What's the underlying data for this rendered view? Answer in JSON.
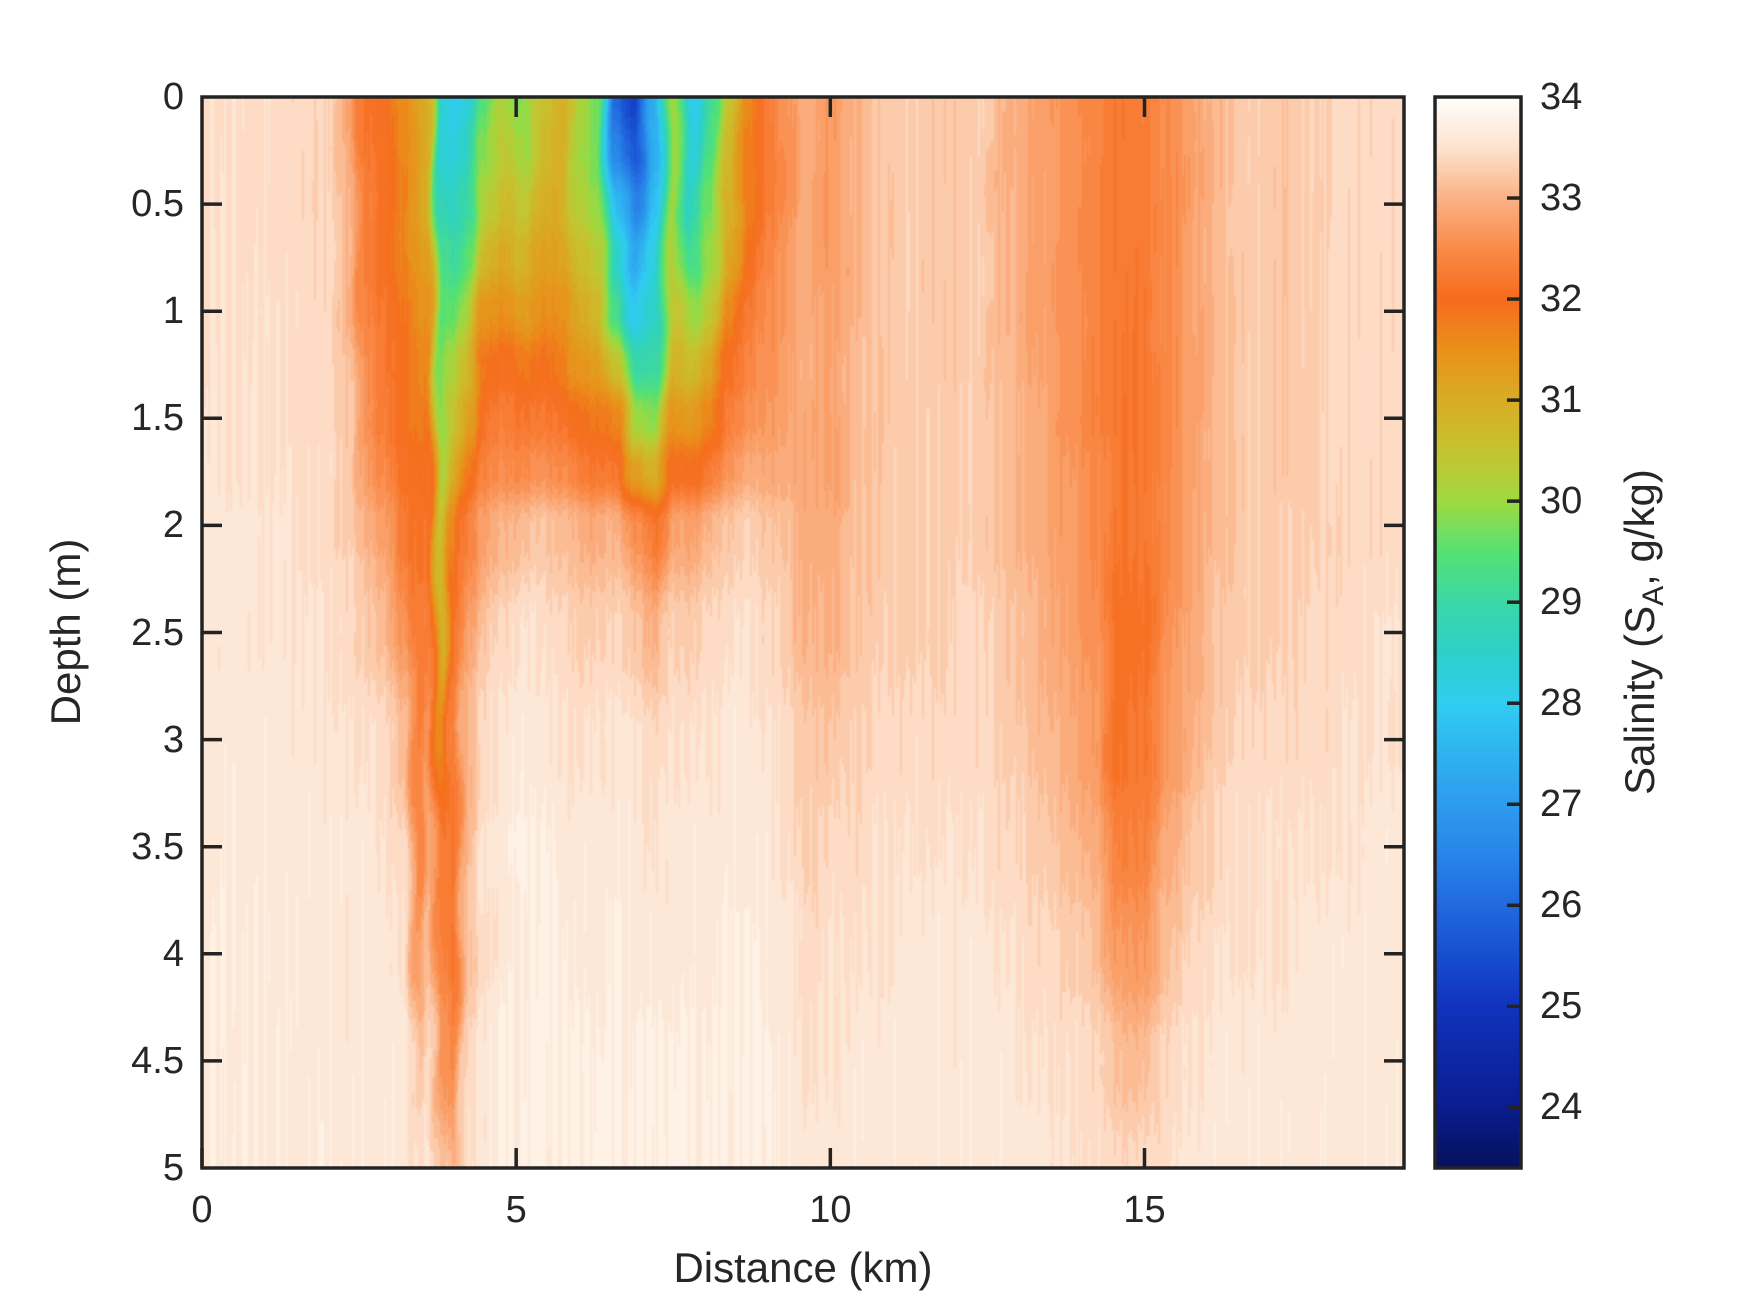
{
  "background": "#FFFFFF",
  "axes_color": "#232323",
  "text_color": "#262626",
  "chart_data": {
    "type": "heatmap",
    "title": "",
    "xlabel": "Distance (km)",
    "ylabel": "Depth (m)",
    "xlim": [
      0,
      19.13
    ],
    "ylim": [
      0,
      5
    ],
    "grid": false,
    "x_axis": {
      "ticks": [
        0,
        5,
        10,
        15
      ],
      "labels": [
        "0",
        "5",
        "10",
        "15"
      ]
    },
    "y_axis": {
      "ticks": [
        0,
        0.5,
        1,
        1.5,
        2,
        2.5,
        3,
        3.5,
        4,
        4.5,
        5
      ],
      "labels": [
        "0",
        "0.5",
        "1",
        "1.5",
        "2",
        "2.5",
        "3",
        "3.5",
        "4",
        "4.5",
        "5"
      ]
    },
    "colorbar": {
      "label_pre": "Salinity (S",
      "label_sub": "A",
      "label_post": ", g/kg)",
      "vmin": 23.4,
      "vmax": 34,
      "ticks": [
        34,
        33,
        32,
        31,
        30,
        29,
        28,
        27,
        26,
        25,
        24
      ],
      "tick_labels": [
        "34",
        "33",
        "32",
        "31",
        "30",
        "29",
        "28",
        "27",
        "26",
        "25",
        "24"
      ],
      "colormap": [
        [
          23.5,
          "#071262"
        ],
        [
          24.0,
          "#0A1D90"
        ],
        [
          24.5,
          "#0D27A5"
        ],
        [
          25.0,
          "#1133BD"
        ],
        [
          25.5,
          "#174ED0"
        ],
        [
          26.0,
          "#2169DF"
        ],
        [
          26.5,
          "#2984E9"
        ],
        [
          27.0,
          "#2D9CEE"
        ],
        [
          27.5,
          "#2FB3F0"
        ],
        [
          28.0,
          "#30CDF0"
        ],
        [
          28.5,
          "#2DD0C9"
        ],
        [
          29.0,
          "#3BD7A5"
        ],
        [
          29.5,
          "#55E273"
        ],
        [
          30.0,
          "#9FD93F"
        ],
        [
          30.5,
          "#C6C330"
        ],
        [
          31.0,
          "#D8AC24"
        ],
        [
          31.5,
          "#E9901B"
        ],
        [
          32.0,
          "#F76B1D"
        ],
        [
          32.5,
          "#F98B49"
        ],
        [
          33.0,
          "#FBB286"
        ],
        [
          33.5,
          "#FDE3D0"
        ],
        [
          34.0,
          "#FFFEFC"
        ]
      ]
    },
    "x_km": [
      0.0,
      1.0,
      2.0,
      2.3,
      2.6,
      2.9,
      3.2,
      3.45,
      3.6,
      3.8,
      4.0,
      4.2,
      4.5,
      4.8,
      5.1,
      5.4,
      5.7,
      6.0,
      6.3,
      6.6,
      6.9,
      7.2,
      7.5,
      7.8,
      8.1,
      8.4,
      8.7,
      9.0,
      9.3,
      9.6,
      10.0,
      10.4,
      10.8,
      11.3,
      11.8,
      12.3,
      12.8,
      13.3,
      13.8,
      14.2,
      14.6,
      15.0,
      15.4,
      15.8,
      16.2,
      16.7,
      17.2,
      17.7,
      18.2,
      18.7,
      19.1
    ],
    "depth_m": [
      0.0,
      0.25,
      0.5,
      0.75,
      1.0,
      1.25,
      1.5,
      1.75,
      2.0,
      2.5,
      3.0,
      3.5,
      4.0,
      4.5,
      5.0
    ],
    "salinity_g_kg": [
      [
        33.5,
        33.45,
        33.35,
        32.9,
        32.2,
        32.0,
        31.6,
        31.1,
        30.8,
        28.2,
        28.0,
        28.3,
        29.4,
        30.2,
        29.8,
        30.6,
        30.9,
        30.1,
        29.6,
        26.0,
        25.2,
        27.3,
        30.0,
        28.0,
        29.3,
        30.6,
        31.6,
        32.2,
        32.6,
        32.9,
        32.7,
        33.0,
        33.2,
        33.3,
        33.2,
        33.3,
        33.0,
        32.8,
        32.6,
        32.4,
        32.2,
        32.3,
        32.5,
        32.8,
        33.1,
        33.3,
        33.2,
        33.3,
        33.4,
        33.4,
        33.4
      ],
      [
        33.5,
        33.45,
        33.35,
        33.0,
        32.2,
        32.0,
        31.6,
        31.2,
        30.9,
        28.4,
        28.2,
        28.5,
        29.8,
        30.4,
        30.0,
        30.7,
        30.9,
        30.1,
        29.7,
        26.6,
        25.7,
        27.5,
        30.0,
        28.2,
        29.4,
        30.7,
        31.7,
        32.2,
        32.6,
        32.9,
        32.7,
        33.0,
        33.2,
        33.3,
        33.2,
        33.3,
        33.0,
        32.8,
        32.6,
        32.4,
        32.2,
        32.3,
        32.5,
        32.8,
        33.1,
        33.3,
        33.2,
        33.3,
        33.4,
        33.4,
        33.4
      ],
      [
        33.5,
        33.45,
        33.35,
        33.0,
        32.3,
        32.1,
        31.7,
        31.3,
        31.0,
        28.8,
        28.6,
        29.0,
        30.3,
        30.7,
        30.4,
        30.9,
        31.0,
        30.3,
        29.9,
        27.5,
        26.5,
        27.8,
        30.0,
        28.6,
        29.7,
        30.9,
        31.8,
        32.3,
        32.6,
        32.9,
        32.7,
        33.0,
        33.2,
        33.3,
        33.2,
        33.3,
        33.0,
        32.8,
        32.6,
        32.4,
        32.2,
        32.3,
        32.5,
        32.8,
        33.1,
        33.3,
        33.2,
        33.3,
        33.4,
        33.4,
        33.4
      ],
      [
        33.5,
        33.45,
        33.4,
        33.1,
        32.3,
        32.1,
        31.7,
        31.4,
        31.2,
        29.2,
        29.1,
        29.5,
        30.8,
        31.1,
        30.8,
        31.2,
        31.2,
        30.6,
        30.3,
        28.4,
        27.3,
        28.1,
        30.2,
        29.2,
        30.1,
        31.2,
        32.0,
        32.4,
        32.7,
        32.9,
        32.7,
        33.0,
        33.2,
        33.3,
        33.2,
        33.3,
        33.0,
        32.8,
        32.6,
        32.4,
        32.2,
        32.3,
        32.5,
        32.8,
        33.1,
        33.3,
        33.2,
        33.3,
        33.4,
        33.4,
        33.4
      ],
      [
        33.5,
        33.5,
        33.4,
        33.1,
        32.4,
        32.2,
        31.8,
        31.5,
        31.4,
        29.5,
        29.6,
        30.0,
        31.4,
        31.5,
        31.3,
        31.5,
        31.5,
        31.0,
        30.8,
        29.3,
        28.0,
        28.5,
        30.5,
        29.9,
        30.5,
        31.6,
        32.2,
        32.5,
        32.7,
        32.9,
        32.8,
        33.0,
        33.2,
        33.3,
        33.2,
        33.3,
        33.0,
        32.8,
        32.6,
        32.4,
        32.2,
        32.2,
        32.5,
        32.8,
        33.1,
        33.3,
        33.2,
        33.3,
        33.4,
        33.4,
        33.4
      ],
      [
        33.5,
        33.5,
        33.4,
        33.2,
        32.5,
        32.2,
        31.9,
        31.7,
        31.6,
        29.7,
        30.1,
        30.6,
        31.9,
        32.0,
        31.8,
        31.9,
        31.8,
        31.4,
        31.3,
        30.5,
        28.9,
        29.0,
        30.9,
        30.6,
        31.1,
        32.0,
        32.4,
        32.6,
        32.8,
        33.0,
        32.8,
        33.1,
        33.2,
        33.3,
        33.2,
        33.3,
        33.1,
        32.8,
        32.6,
        32.4,
        32.2,
        32.2,
        32.5,
        32.8,
        33.1,
        33.3,
        33.2,
        33.3,
        33.4,
        33.4,
        33.4
      ],
      [
        33.55,
        33.5,
        33.4,
        33.2,
        32.6,
        32.3,
        32.0,
        31.8,
        31.8,
        29.9,
        30.6,
        31.2,
        32.2,
        32.3,
        32.2,
        32.2,
        32.2,
        31.9,
        31.8,
        31.6,
        30.0,
        29.8,
        31.4,
        31.3,
        31.7,
        32.4,
        32.6,
        32.7,
        32.8,
        32.9,
        32.8,
        33.1,
        33.2,
        33.3,
        33.3,
        33.3,
        33.1,
        32.9,
        32.6,
        32.4,
        32.2,
        32.2,
        32.5,
        32.8,
        33.1,
        33.3,
        33.2,
        33.3,
        33.4,
        33.4,
        33.4
      ],
      [
        33.55,
        33.5,
        33.45,
        33.3,
        32.8,
        32.5,
        32.1,
        32.0,
        32.0,
        30.2,
        31.1,
        31.7,
        32.4,
        32.5,
        32.5,
        32.6,
        32.5,
        32.3,
        32.2,
        32.2,
        31.3,
        30.9,
        32.0,
        32.0,
        32.3,
        32.7,
        32.9,
        32.9,
        32.9,
        32.9,
        32.8,
        33.1,
        33.2,
        33.3,
        33.3,
        33.3,
        33.1,
        32.9,
        32.7,
        32.5,
        32.2,
        32.2,
        32.5,
        32.8,
        33.1,
        33.3,
        33.2,
        33.3,
        33.4,
        33.4,
        33.4
      ],
      [
        33.6,
        33.55,
        33.45,
        33.3,
        33.0,
        32.7,
        32.2,
        32.1,
        32.1,
        30.6,
        31.6,
        32.2,
        32.8,
        33.0,
        33.1,
        33.2,
        33.1,
        33.0,
        32.9,
        33.0,
        32.5,
        32.2,
        32.8,
        32.8,
        33.0,
        33.2,
        33.3,
        33.2,
        33.1,
        32.9,
        32.9,
        33.1,
        33.2,
        33.3,
        33.3,
        33.3,
        33.1,
        32.9,
        32.7,
        32.5,
        32.2,
        32.2,
        32.5,
        32.9,
        33.1,
        33.3,
        33.3,
        33.3,
        33.4,
        33.4,
        33.4
      ],
      [
        33.6,
        33.55,
        33.5,
        33.4,
        33.3,
        33.1,
        32.7,
        32.2,
        32.3,
        30.9,
        32.2,
        32.8,
        33.2,
        33.4,
        33.5,
        33.5,
        33.4,
        33.3,
        33.3,
        33.4,
        33.2,
        33.0,
        33.3,
        33.3,
        33.4,
        33.5,
        33.5,
        33.4,
        33.3,
        33.0,
        33.0,
        33.2,
        33.3,
        33.3,
        33.3,
        33.4,
        33.2,
        33.0,
        32.8,
        32.6,
        32.1,
        32.1,
        32.6,
        32.9,
        33.2,
        33.3,
        33.3,
        33.4,
        33.4,
        33.5,
        33.5
      ],
      [
        33.6,
        33.6,
        33.55,
        33.5,
        33.5,
        33.4,
        33.1,
        32.3,
        32.6,
        31.6,
        32.3,
        33.0,
        33.4,
        33.6,
        33.6,
        33.6,
        33.5,
        33.5,
        33.5,
        33.6,
        33.5,
        33.4,
        33.5,
        33.5,
        33.5,
        33.6,
        33.6,
        33.5,
        33.4,
        33.2,
        33.2,
        33.3,
        33.4,
        33.4,
        33.4,
        33.4,
        33.3,
        33.1,
        32.9,
        32.7,
        32.1,
        32.2,
        32.7,
        33.0,
        33.3,
        33.4,
        33.4,
        33.4,
        33.5,
        33.5,
        33.5
      ],
      [
        33.65,
        33.6,
        33.6,
        33.6,
        33.6,
        33.5,
        33.4,
        32.4,
        32.9,
        32.2,
        32.2,
        33.0,
        33.5,
        33.6,
        33.7,
        33.7,
        33.6,
        33.6,
        33.6,
        33.6,
        33.6,
        33.5,
        33.6,
        33.6,
        33.6,
        33.6,
        33.6,
        33.6,
        33.5,
        33.3,
        33.4,
        33.4,
        33.5,
        33.5,
        33.5,
        33.5,
        33.4,
        33.3,
        33.1,
        32.9,
        32.3,
        32.4,
        32.9,
        33.2,
        33.4,
        33.5,
        33.5,
        33.5,
        33.5,
        33.6,
        33.6
      ],
      [
        33.65,
        33.65,
        33.6,
        33.6,
        33.6,
        33.6,
        33.5,
        32.7,
        33.1,
        32.4,
        32.2,
        33.1,
        33.5,
        33.6,
        33.7,
        33.7,
        33.7,
        33.6,
        33.6,
        33.7,
        33.6,
        33.6,
        33.6,
        33.6,
        33.6,
        33.7,
        33.7,
        33.6,
        33.6,
        33.4,
        33.5,
        33.5,
        33.5,
        33.6,
        33.6,
        33.6,
        33.5,
        33.4,
        33.3,
        33.2,
        32.7,
        32.7,
        33.2,
        33.4,
        33.5,
        33.5,
        33.5,
        33.6,
        33.6,
        33.6,
        33.6
      ],
      [
        33.65,
        33.65,
        33.6,
        33.6,
        33.6,
        33.6,
        33.6,
        33.2,
        33.4,
        32.7,
        32.5,
        33.3,
        33.6,
        33.7,
        33.7,
        33.7,
        33.7,
        33.7,
        33.7,
        33.7,
        33.7,
        33.7,
        33.7,
        33.7,
        33.7,
        33.7,
        33.7,
        33.7,
        33.6,
        33.5,
        33.5,
        33.6,
        33.6,
        33.6,
        33.6,
        33.6,
        33.6,
        33.5,
        33.5,
        33.4,
        33.1,
        33.1,
        33.4,
        33.5,
        33.6,
        33.6,
        33.6,
        33.6,
        33.6,
        33.6,
        33.6
      ],
      [
        33.65,
        33.65,
        33.65,
        33.6,
        33.6,
        33.6,
        33.6,
        33.5,
        33.5,
        33.2,
        33.0,
        33.5,
        33.6,
        33.7,
        33.7,
        33.7,
        33.7,
        33.7,
        33.7,
        33.7,
        33.7,
        33.7,
        33.7,
        33.7,
        33.7,
        33.7,
        33.7,
        33.7,
        33.6,
        33.6,
        33.6,
        33.6,
        33.6,
        33.6,
        33.6,
        33.6,
        33.6,
        33.6,
        33.5,
        33.5,
        33.4,
        33.4,
        33.5,
        33.6,
        33.6,
        33.6,
        33.6,
        33.6,
        33.6,
        33.6,
        33.6
      ]
    ]
  }
}
